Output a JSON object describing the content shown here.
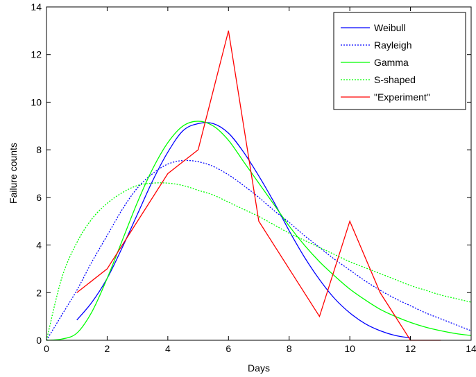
{
  "chart_data": {
    "type": "line",
    "xlabel": "Days",
    "ylabel": "Failure counts",
    "xlim": [
      0,
      14
    ],
    "ylim": [
      0,
      14
    ],
    "xticks": [
      "0",
      "2",
      "4",
      "6",
      "8",
      "10",
      "12",
      "14"
    ],
    "yticks": [
      "0",
      "2",
      "4",
      "6",
      "8",
      "10",
      "12",
      "14"
    ],
    "grid": false,
    "legend_position": "top-right",
    "series": [
      {
        "name": "Weibull",
        "color": "#0000ff",
        "style": "solid",
        "x": [
          1,
          1.5,
          2,
          2.5,
          3,
          3.5,
          4,
          4.5,
          5,
          5.5,
          6,
          6.5,
          7,
          7.5,
          8,
          8.5,
          9,
          9.5,
          10,
          10.5,
          11,
          11.5,
          12
        ],
        "y": [
          0.85,
          1.6,
          2.6,
          3.9,
          5.3,
          6.7,
          7.9,
          8.8,
          9.1,
          9.1,
          8.7,
          7.9,
          6.9,
          5.8,
          4.6,
          3.5,
          2.55,
          1.75,
          1.15,
          0.7,
          0.4,
          0.2,
          0.1
        ]
      },
      {
        "name": "Rayleigh",
        "color": "#0000ff",
        "style": "dotted",
        "x": [
          0,
          0.5,
          1,
          1.5,
          2,
          2.5,
          3,
          3.5,
          4,
          4.5,
          5,
          5.5,
          6,
          6.5,
          7,
          7.5,
          8,
          8.5,
          9,
          9.5,
          10,
          10.5,
          11,
          11.5,
          12,
          12.5,
          13,
          13.5,
          14
        ],
        "y": [
          0,
          1.05,
          2.1,
          3.3,
          4.4,
          5.5,
          6.4,
          7.0,
          7.4,
          7.55,
          7.5,
          7.3,
          6.95,
          6.5,
          6.0,
          5.45,
          4.95,
          4.4,
          3.9,
          3.4,
          2.95,
          2.5,
          2.1,
          1.75,
          1.45,
          1.15,
          0.9,
          0.65,
          0.4
        ]
      },
      {
        "name": "Gamma",
        "color": "#00ff00",
        "style": "solid",
        "x": [
          0,
          0.5,
          1,
          1.5,
          2,
          2.5,
          3,
          3.5,
          4,
          4.5,
          5,
          5.5,
          6,
          6.5,
          7,
          7.5,
          8,
          8.5,
          9,
          9.5,
          10,
          10.5,
          11,
          11.5,
          12,
          12.5,
          13,
          13.5,
          14
        ],
        "y": [
          0,
          0.05,
          0.3,
          1.2,
          2.6,
          4.2,
          5.8,
          7.2,
          8.3,
          9.0,
          9.2,
          9.0,
          8.4,
          7.5,
          6.6,
          5.7,
          4.8,
          4.0,
          3.3,
          2.7,
          2.15,
          1.7,
          1.3,
          1.0,
          0.75,
          0.55,
          0.4,
          0.28,
          0.2
        ]
      },
      {
        "name": "S-shaped",
        "color": "#00ff00",
        "style": "dotted",
        "x": [
          0,
          0.5,
          1,
          1.5,
          2,
          2.5,
          3,
          3.5,
          4,
          4.5,
          5,
          5.5,
          6,
          6.5,
          7,
          7.5,
          8,
          8.5,
          9,
          9.5,
          10,
          10.5,
          11,
          11.5,
          12,
          12.5,
          13,
          13.5,
          14
        ],
        "y": [
          0,
          2.6,
          4.1,
          5.1,
          5.75,
          6.2,
          6.5,
          6.6,
          6.6,
          6.5,
          6.3,
          6.1,
          5.8,
          5.5,
          5.2,
          4.85,
          4.5,
          4.2,
          3.9,
          3.6,
          3.3,
          3.05,
          2.8,
          2.55,
          2.3,
          2.1,
          1.9,
          1.75,
          1.6
        ]
      },
      {
        "name": "\"Experiment\"",
        "color": "#ff0000",
        "style": "solid",
        "x": [
          1,
          2,
          3,
          4,
          5,
          6,
          7,
          8,
          9,
          10,
          11,
          12,
          13
        ],
        "y": [
          2,
          3,
          5,
          7,
          8,
          13,
          5,
          3,
          1,
          5,
          2,
          0,
          0
        ]
      }
    ]
  }
}
